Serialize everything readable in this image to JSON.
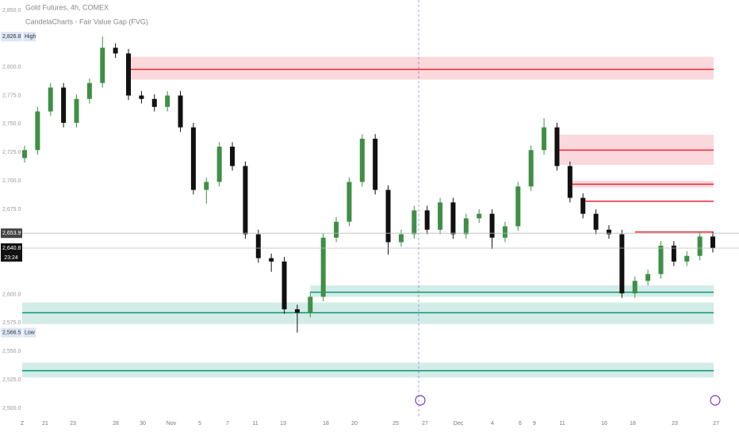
{
  "chart_data": {
    "type": "candlestick",
    "title": "Gold Futures, 4h, COMEX",
    "subtitle": "CandelaCharts - Fair Value Gap (FVG)",
    "ylim": [
      2493,
      2859
    ],
    "yticks": [
      {
        "value": 2850,
        "label": "2,850.0"
      },
      {
        "value": 2800,
        "label": "2,800.0"
      },
      {
        "value": 2775,
        "label": "2,775.0"
      },
      {
        "value": 2750,
        "label": "2,750.0"
      },
      {
        "value": 2725,
        "label": "2,725.0"
      },
      {
        "value": 2700,
        "label": "2,700.0"
      },
      {
        "value": 2675,
        "label": "2,675.0"
      },
      {
        "value": 2600,
        "label": "2,600.0"
      },
      {
        "value": 2575,
        "label": "2,575.0"
      },
      {
        "value": 2550,
        "label": "2,550.0"
      },
      {
        "value": 2525,
        "label": "2,525.0"
      },
      {
        "value": 2500,
        "label": "2,500.0"
      }
    ],
    "x_labels": [
      "Z",
      "21",
      "23",
      "28",
      "30",
      "Nov",
      "5",
      "7",
      "11",
      "13",
      "18",
      "20",
      "25",
      "27",
      "Dec",
      "4",
      "6",
      "9",
      "11",
      "16",
      "18",
      "23",
      "27"
    ],
    "up_color": "#3f8f46",
    "down_color": "#111111",
    "open": [
      2720,
      2727,
      2761,
      2782,
      2751,
      2772,
      2786,
      2817,
      2812,
      2775,
      2772,
      2765,
      2775,
      2747,
      2692,
      2699,
      2730,
      2713,
      2653,
      2632,
      2629,
      2587,
      2584,
      2598,
      2650,
      2664,
      2699,
      2737,
      2692,
      2646,
      2653,
      2674,
      2657,
      2681,
      2653,
      2667,
      2671,
      2650,
      2660,
      2695,
      2727,
      2747,
      2713,
      2685,
      2671,
      2657,
      2653,
      2601,
      2612,
      2618,
      2643,
      2629,
      2634,
      2651
    ],
    "high": [
      2731,
      2765,
      2786,
      2786,
      2776,
      2790,
      2826.8,
      2821,
      2816,
      2779,
      2776,
      2779,
      2779,
      2751,
      2703,
      2734,
      2734,
      2717,
      2657,
      2636,
      2633,
      2591,
      2602,
      2654,
      2668,
      2703,
      2741,
      2741,
      2696,
      2657,
      2678,
      2678,
      2685,
      2685,
      2671,
      2675,
      2675,
      2664,
      2699,
      2731,
      2755,
      2751,
      2717,
      2689,
      2675,
      2661,
      2657,
      2616,
      2622,
      2647,
      2647,
      2638,
      2655,
      2655
    ],
    "low": [
      2716,
      2723,
      2757,
      2747,
      2747,
      2768,
      2782,
      2808,
      2771,
      2768,
      2761,
      2761,
      2743,
      2688,
      2680,
      2695,
      2709,
      2649,
      2628,
      2620,
      2583,
      2566.5,
      2580,
      2594,
      2646,
      2660,
      2695,
      2688,
      2635,
      2642,
      2649,
      2653,
      2653,
      2649,
      2649,
      2663,
      2640,
      2646,
      2656,
      2691,
      2723,
      2709,
      2681,
      2667,
      2653,
      2649,
      2597,
      2597,
      2608,
      2614,
      2625,
      2625,
      2630,
      2637
    ],
    "close": [
      2727,
      2761,
      2782,
      2751,
      2772,
      2786,
      2817,
      2812,
      2775,
      2772,
      2765,
      2775,
      2747,
      2692,
      2699,
      2730,
      2713,
      2653,
      2632,
      2629,
      2587,
      2584,
      2598,
      2650,
      2664,
      2699,
      2737,
      2692,
      2646,
      2653,
      2674,
      2657,
      2681,
      2653,
      2667,
      2671,
      2650,
      2660,
      2695,
      2727,
      2747,
      2713,
      2685,
      2671,
      2657,
      2653,
      2601,
      2612,
      2618,
      2643,
      2629,
      2634,
      2651,
      2640.8
    ],
    "zones": [
      {
        "kind": "bearish",
        "start": 8,
        "top": 2809,
        "bottom": 2789,
        "line": 2798
      },
      {
        "kind": "bearish",
        "start": 41,
        "top": 2740.5,
        "bottom": 2714,
        "line": 2727
      },
      {
        "kind": "bearish",
        "start": 42,
        "top": 2700,
        "bottom": 2694,
        "line": 2697
      },
      {
        "kind": "bearish",
        "start": 43,
        "top": 2682,
        "bottom": 2682,
        "line": 2682
      },
      {
        "kind": "bearish",
        "start": 47,
        "top": 2655,
        "bottom": 2655,
        "line": 2655
      },
      {
        "kind": "bullish",
        "start": 22,
        "top": 2608,
        "bottom": 2598,
        "line": 2602
      },
      {
        "kind": "bullish",
        "start": 0,
        "top": 2593,
        "bottom": 2574,
        "line": 2584
      },
      {
        "kind": "bullish",
        "start": 0,
        "top": 2540,
        "bottom": 2527,
        "line": 2533
      }
    ],
    "zone_colors": {
      "bearish": "#e8283a",
      "bullish": "#0a9478"
    },
    "price_tags": [
      {
        "value": 2826.8,
        "label": "2,826.8",
        "note": "High"
      },
      {
        "value": 2653.9,
        "label": "2,653.9"
      },
      {
        "value": 2640.8,
        "label": "2,640.8",
        "note": "23:24"
      },
      {
        "value": 2566.5,
        "label": "2,566.5",
        "note": "Low"
      }
    ]
  }
}
